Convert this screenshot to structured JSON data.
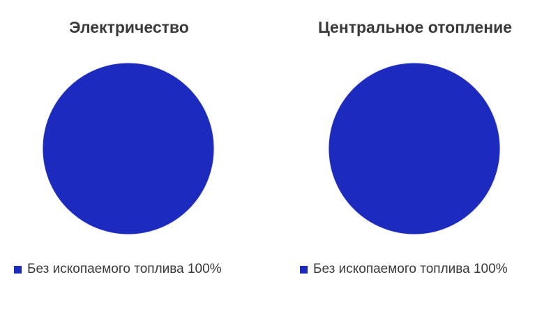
{
  "chart_data": [
    {
      "type": "pie",
      "title": "Электричество",
      "categories": [
        "Без ископаемого топлива"
      ],
      "values": [
        100
      ],
      "legend": {
        "placement": "bottom",
        "labels": [
          "Без ископаемого топлива 100%"
        ]
      },
      "colors": [
        "#1c2bbd"
      ]
    },
    {
      "type": "pie",
      "title": "Центральное отопление",
      "categories": [
        "Без ископаемого топлива"
      ],
      "values": [
        100
      ],
      "legend": {
        "placement": "bottom",
        "labels": [
          "Без ископаемого топлива 100%"
        ]
      },
      "colors": [
        "#1c2bbd"
      ]
    }
  ]
}
